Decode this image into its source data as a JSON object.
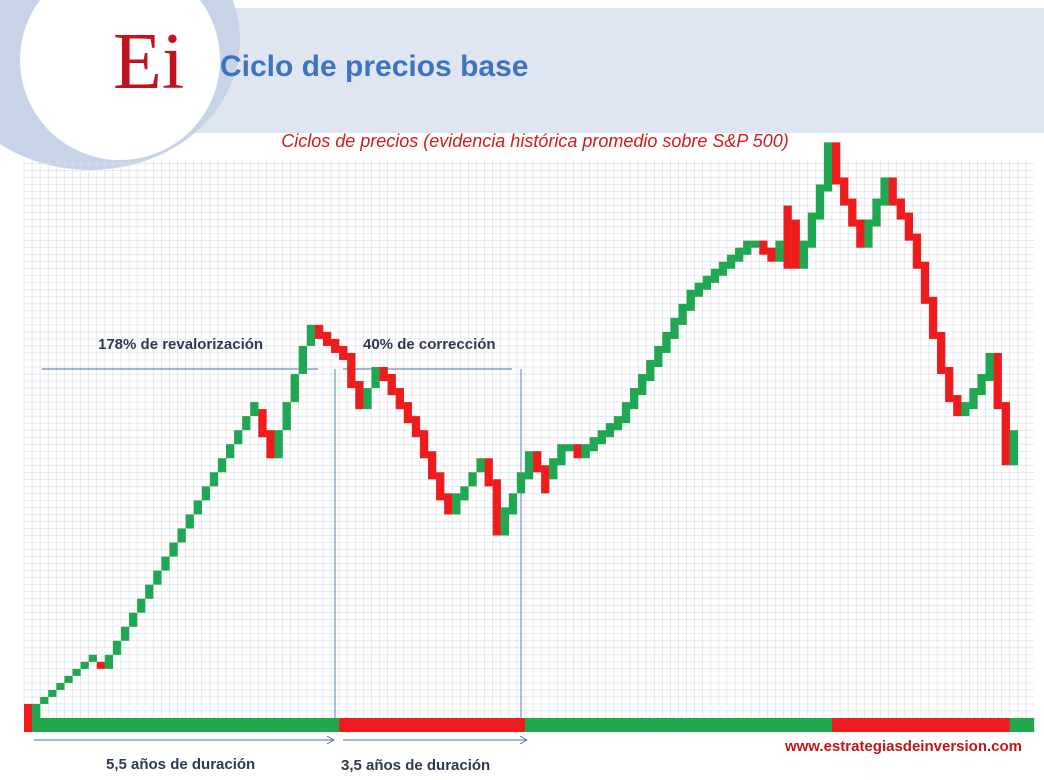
{
  "header": {
    "logo_text": "Ei",
    "title": "Ciclo de precios base"
  },
  "colors": {
    "up": "#1fa84f",
    "down": "#ee1c1c",
    "header_band": "#dfe6f1",
    "title": "#3d74c2",
    "subtitle": "#d01c1c",
    "grid": "#d9dee4",
    "guide_line": "#4a6fb0"
  },
  "chart_data": {
    "type": "bar",
    "title": "Ciclos de precios (evidencia histórica promedio sobre S&P 500)",
    "grid": true,
    "unit_boxes": 1,
    "columns": [
      {
        "c": "down",
        "lo": 0,
        "hi": 2
      },
      {
        "c": "up",
        "lo": 0,
        "hi": 2
      },
      {
        "c": "up",
        "lo": 2,
        "hi": 3
      },
      {
        "c": "up",
        "lo": 3,
        "hi": 4
      },
      {
        "c": "up",
        "lo": 4,
        "hi": 5
      },
      {
        "c": "up",
        "lo": 5,
        "hi": 6
      },
      {
        "c": "up",
        "lo": 6,
        "hi": 7
      },
      {
        "c": "up",
        "lo": 7,
        "hi": 8
      },
      {
        "c": "up",
        "lo": 8,
        "hi": 9
      },
      {
        "c": "down",
        "lo": 7,
        "hi": 8
      },
      {
        "c": "up",
        "lo": 7,
        "hi": 9
      },
      {
        "c": "up",
        "lo": 9,
        "hi": 11
      },
      {
        "c": "up",
        "lo": 11,
        "hi": 13
      },
      {
        "c": "up",
        "lo": 13,
        "hi": 15
      },
      {
        "c": "up",
        "lo": 15,
        "hi": 17
      },
      {
        "c": "up",
        "lo": 17,
        "hi": 19
      },
      {
        "c": "up",
        "lo": 19,
        "hi": 21
      },
      {
        "c": "up",
        "lo": 21,
        "hi": 23
      },
      {
        "c": "up",
        "lo": 23,
        "hi": 25
      },
      {
        "c": "up",
        "lo": 25,
        "hi": 27
      },
      {
        "c": "up",
        "lo": 27,
        "hi": 29
      },
      {
        "c": "up",
        "lo": 29,
        "hi": 31
      },
      {
        "c": "up",
        "lo": 31,
        "hi": 33
      },
      {
        "c": "up",
        "lo": 33,
        "hi": 35
      },
      {
        "c": "up",
        "lo": 35,
        "hi": 37
      },
      {
        "c": "up",
        "lo": 37,
        "hi": 39
      },
      {
        "c": "up",
        "lo": 39,
        "hi": 41
      },
      {
        "c": "up",
        "lo": 41,
        "hi": 43
      },
      {
        "c": "up",
        "lo": 43,
        "hi": 45
      },
      {
        "c": "down",
        "lo": 40,
        "hi": 44
      },
      {
        "c": "down",
        "lo": 37,
        "hi": 41
      },
      {
        "c": "up",
        "lo": 37,
        "hi": 41
      },
      {
        "c": "up",
        "lo": 41,
        "hi": 45
      },
      {
        "c": "up",
        "lo": 45,
        "hi": 49
      },
      {
        "c": "up",
        "lo": 49,
        "hi": 53
      },
      {
        "c": "up",
        "lo": 53,
        "hi": 56
      },
      {
        "c": "down",
        "lo": 54,
        "hi": 56
      },
      {
        "c": "down",
        "lo": 53,
        "hi": 55
      },
      {
        "c": "down",
        "lo": 52,
        "hi": 54
      },
      {
        "c": "down",
        "lo": 51,
        "hi": 53
      },
      {
        "c": "down",
        "lo": 47,
        "hi": 52
      },
      {
        "c": "down",
        "lo": 44,
        "hi": 48
      },
      {
        "c": "up",
        "lo": 44,
        "hi": 47
      },
      {
        "c": "up",
        "lo": 47,
        "hi": 50
      },
      {
        "c": "down",
        "lo": 48,
        "hi": 50
      },
      {
        "c": "down",
        "lo": 46,
        "hi": 49
      },
      {
        "c": "down",
        "lo": 44,
        "hi": 47
      },
      {
        "c": "down",
        "lo": 42,
        "hi": 45
      },
      {
        "c": "down",
        "lo": 40,
        "hi": 43
      },
      {
        "c": "down",
        "lo": 37,
        "hi": 41
      },
      {
        "c": "down",
        "lo": 34,
        "hi": 38
      },
      {
        "c": "down",
        "lo": 31,
        "hi": 35
      },
      {
        "c": "down",
        "lo": 29,
        "hi": 32
      },
      {
        "c": "up",
        "lo": 29,
        "hi": 32
      },
      {
        "c": "up",
        "lo": 31,
        "hi": 33
      },
      {
        "c": "up",
        "lo": 33,
        "hi": 35
      },
      {
        "c": "up",
        "lo": 35,
        "hi": 37
      },
      {
        "c": "down",
        "lo": 33,
        "hi": 37
      },
      {
        "c": "down",
        "lo": 26,
        "hi": 34
      },
      {
        "c": "up",
        "lo": 26,
        "hi": 30
      },
      {
        "c": "up",
        "lo": 29,
        "hi": 32
      },
      {
        "c": "up",
        "lo": 32,
        "hi": 35
      },
      {
        "c": "up",
        "lo": 34,
        "hi": 38
      },
      {
        "c": "down",
        "lo": 35,
        "hi": 38
      },
      {
        "c": "down",
        "lo": 32,
        "hi": 36
      },
      {
        "c": "up",
        "lo": 34,
        "hi": 37
      },
      {
        "c": "up",
        "lo": 36,
        "hi": 39
      },
      {
        "c": "up",
        "lo": 38,
        "hi": 39
      },
      {
        "c": "down",
        "lo": 37,
        "hi": 39
      },
      {
        "c": "up",
        "lo": 37,
        "hi": 39
      },
      {
        "c": "up",
        "lo": 38,
        "hi": 40
      },
      {
        "c": "up",
        "lo": 39,
        "hi": 41
      },
      {
        "c": "up",
        "lo": 40,
        "hi": 42
      },
      {
        "c": "up",
        "lo": 41,
        "hi": 43
      },
      {
        "c": "up",
        "lo": 42,
        "hi": 45
      },
      {
        "c": "up",
        "lo": 44,
        "hi": 47
      },
      {
        "c": "up",
        "lo": 46,
        "hi": 49
      },
      {
        "c": "up",
        "lo": 48,
        "hi": 51
      },
      {
        "c": "up",
        "lo": 50,
        "hi": 53
      },
      {
        "c": "up",
        "lo": 52,
        "hi": 55
      },
      {
        "c": "up",
        "lo": 54,
        "hi": 57
      },
      {
        "c": "up",
        "lo": 56,
        "hi": 59
      },
      {
        "c": "up",
        "lo": 58,
        "hi": 61
      },
      {
        "c": "up",
        "lo": 60,
        "hi": 62
      },
      {
        "c": "up",
        "lo": 61,
        "hi": 63
      },
      {
        "c": "up",
        "lo": 62,
        "hi": 64
      },
      {
        "c": "up",
        "lo": 63,
        "hi": 65
      },
      {
        "c": "up",
        "lo": 64,
        "hi": 66
      },
      {
        "c": "up",
        "lo": 65,
        "hi": 67
      },
      {
        "c": "up",
        "lo": 66,
        "hi": 68
      },
      {
        "c": "up",
        "lo": 67,
        "hi": 68
      },
      {
        "c": "down",
        "lo": 66,
        "hi": 68
      },
      {
        "c": "down",
        "lo": 65,
        "hi": 67
      },
      {
        "c": "up",
        "lo": 65,
        "hi": 68
      },
      {
        "c": "down",
        "lo": 64,
        "hi": 73
      },
      {
        "c": "down",
        "lo": 64,
        "hi": 71
      },
      {
        "c": "up",
        "lo": 64,
        "hi": 68
      },
      {
        "c": "up",
        "lo": 67,
        "hi": 72
      },
      {
        "c": "up",
        "lo": 71,
        "hi": 76
      },
      {
        "c": "up",
        "lo": 75,
        "hi": 82
      },
      {
        "c": "down",
        "lo": 76,
        "hi": 82
      },
      {
        "c": "down",
        "lo": 73,
        "hi": 77
      },
      {
        "c": "down",
        "lo": 70,
        "hi": 74
      },
      {
        "c": "down",
        "lo": 67,
        "hi": 71
      },
      {
        "c": "up",
        "lo": 67,
        "hi": 71
      },
      {
        "c": "up",
        "lo": 70,
        "hi": 74
      },
      {
        "c": "up",
        "lo": 73,
        "hi": 77
      },
      {
        "c": "down",
        "lo": 73,
        "hi": 77
      },
      {
        "c": "down",
        "lo": 71,
        "hi": 74
      },
      {
        "c": "down",
        "lo": 68,
        "hi": 72
      },
      {
        "c": "down",
        "lo": 64,
        "hi": 69
      },
      {
        "c": "down",
        "lo": 59,
        "hi": 65
      },
      {
        "c": "down",
        "lo": 54,
        "hi": 60
      },
      {
        "c": "down",
        "lo": 49,
        "hi": 55
      },
      {
        "c": "down",
        "lo": 45,
        "hi": 50
      },
      {
        "c": "down",
        "lo": 43,
        "hi": 46
      },
      {
        "c": "up",
        "lo": 43,
        "hi": 45
      },
      {
        "c": "up",
        "lo": 44,
        "hi": 47
      },
      {
        "c": "up",
        "lo": 46,
        "hi": 49
      },
      {
        "c": "up",
        "lo": 48,
        "hi": 52
      },
      {
        "c": "down",
        "lo": 44,
        "hi": 52
      },
      {
        "c": "down",
        "lo": 36,
        "hi": 45
      },
      {
        "c": "up",
        "lo": 36,
        "hi": 41
      }
    ],
    "phase_bar": [
      {
        "c": "down",
        "from": 0,
        "to": 1
      },
      {
        "c": "up",
        "from": 1,
        "to": 39
      },
      {
        "c": "down",
        "from": 39,
        "to": 62
      },
      {
        "c": "up",
        "from": 62,
        "to": 100
      },
      {
        "c": "down",
        "from": 100,
        "to": 122
      },
      {
        "c": "up",
        "from": 122,
        "to": 125
      }
    ],
    "annotations": {
      "rise_label": "178% de revalorización",
      "fall_label": "40% de corrección",
      "rise_duration": "5,5 años de duración",
      "fall_duration": "3,5 años de duración"
    }
  },
  "footer": {
    "website": "www.estrategiasdeinversion.com"
  }
}
